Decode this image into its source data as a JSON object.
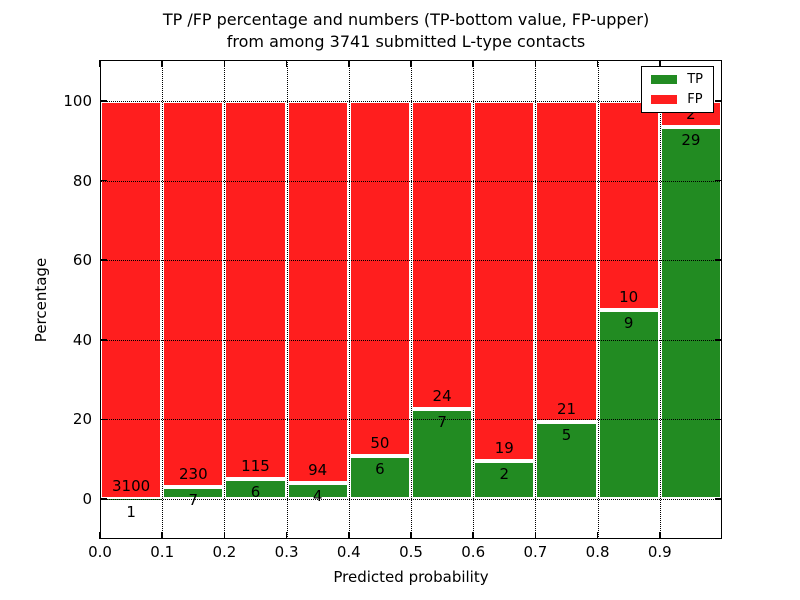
{
  "title": {
    "line1": "TP /FP percentage and numbers (TP-bottom value, FP-upper)",
    "line2": "from among 3741 submitted L-type contacts"
  },
  "axes": {
    "xlabel": "Predicted probability",
    "ylabel": "Percentage"
  },
  "legend": {
    "position": "upper right",
    "items": [
      {
        "label": "TP",
        "color": "#228b22"
      },
      {
        "label": "FP",
        "color": "#ff1e1e"
      }
    ]
  },
  "colors": {
    "tp_green": "#228b22",
    "fp_red": "#ff1e1e",
    "grid": "#000000",
    "frame": "#000000",
    "background": "#ffffff",
    "bar_edge": "#ffffff"
  },
  "chart_data": {
    "type": "bar",
    "stacked": true,
    "title": "TP /FP percentage and numbers (TP-bottom value, FP-upper) from among 3741 submitted L-type contacts",
    "xlabel": "Predicted probability",
    "ylabel": "Percentage",
    "total_submitted_contacts": 3741,
    "grid": "dotted",
    "legend_position": "upper right",
    "xlim": [
      0.0,
      1.0
    ],
    "ylim_percent": [
      -10.7,
      110.3
    ],
    "bin_width": 0.1,
    "x_tick_labels": [
      "0.0",
      "0.1",
      "0.2",
      "0.3",
      "0.4",
      "0.5",
      "0.6",
      "0.7",
      "0.8",
      "0.9"
    ],
    "y_ticks": [
      0,
      20,
      40,
      60,
      80,
      100
    ],
    "bins": [
      {
        "range": "0.0-0.1",
        "tp": 1,
        "fp": 3100,
        "tp_percent": 0.03
      },
      {
        "range": "0.1-0.2",
        "tp": 7,
        "fp": 230,
        "tp_percent": 2.95
      },
      {
        "range": "0.2-0.3",
        "tp": 6,
        "fp": 115,
        "tp_percent": 4.96
      },
      {
        "range": "0.3-0.4",
        "tp": 4,
        "fp": 94,
        "tp_percent": 4.08
      },
      {
        "range": "0.4-0.5",
        "tp": 6,
        "fp": 50,
        "tp_percent": 10.71
      },
      {
        "range": "0.5-0.6",
        "tp": 7,
        "fp": 24,
        "tp_percent": 22.58
      },
      {
        "range": "0.6-0.7",
        "tp": 2,
        "fp": 19,
        "tp_percent": 9.52
      },
      {
        "range": "0.7-0.8",
        "tp": 5,
        "fp": 21,
        "tp_percent": 19.23
      },
      {
        "range": "0.8-0.9",
        "tp": 9,
        "fp": 10,
        "tp_percent": 47.37
      },
      {
        "range": "0.9-1.0",
        "tp": 29,
        "fp": 2,
        "tp_percent": 93.55
      }
    ],
    "series": [
      {
        "name": "TP",
        "color": "#228b22",
        "counts": [
          1,
          7,
          6,
          4,
          6,
          7,
          2,
          5,
          9,
          29
        ]
      },
      {
        "name": "FP",
        "color": "#ff1e1e",
        "counts": [
          3100,
          230,
          115,
          94,
          50,
          24,
          19,
          21,
          10,
          2
        ]
      }
    ]
  }
}
